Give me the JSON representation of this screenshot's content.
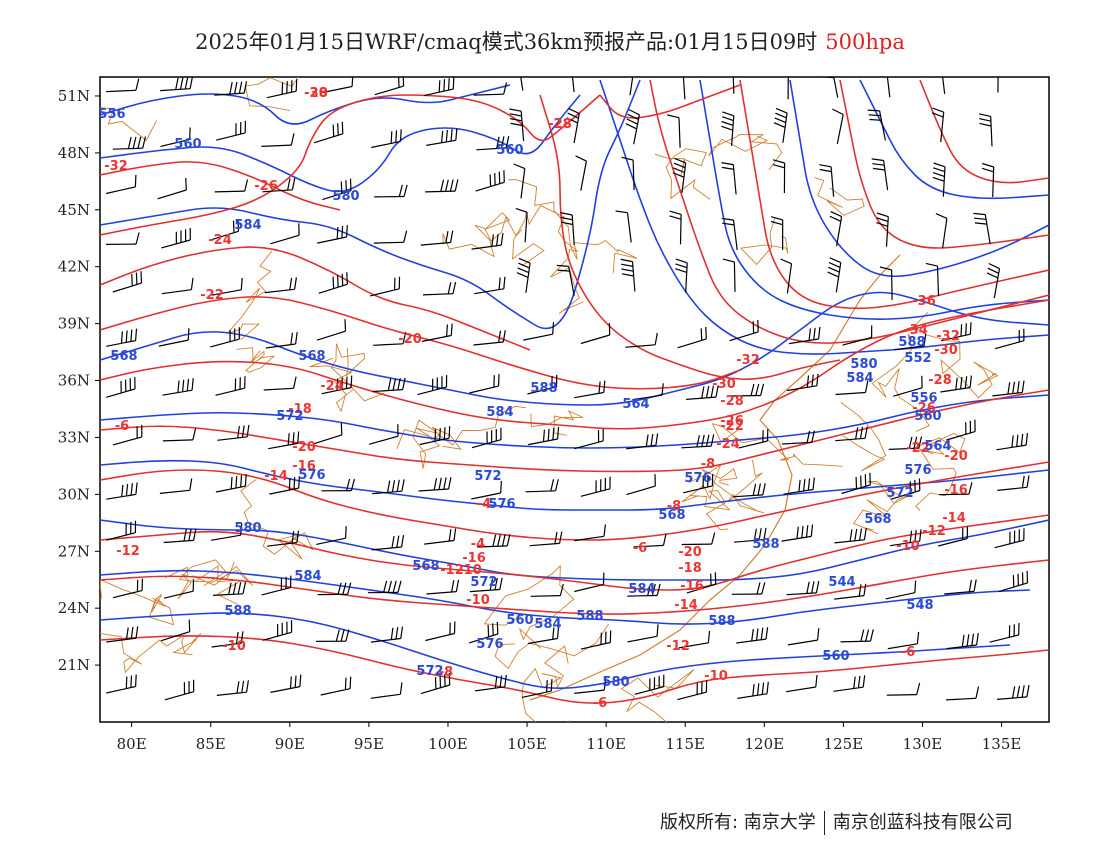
{
  "title": {
    "main": "2025年01月15日WRF/cmaq模式36km预报产品:01月15日09时",
    "level": "500hpa",
    "level_color": "#e02020"
  },
  "map": {
    "region": "East Asia",
    "lon_range": [
      78,
      138
    ],
    "lat_range": [
      18,
      52
    ],
    "lat_ticks": [
      "51N",
      "48N",
      "45N",
      "42N",
      "39N",
      "36N",
      "33N",
      "30N",
      "27N",
      "24N",
      "21N"
    ],
    "lon_ticks": [
      "80E",
      "85E",
      "90E",
      "95E",
      "100E",
      "105E",
      "110E",
      "115E",
      "120E",
      "125E",
      "130E",
      "135E"
    ],
    "temperature_contour_color": "#e03030",
    "height_contour_color": "#2040e0",
    "boundary_color": "#d08030",
    "wind_barb_color": "#000000",
    "temperature_labels": [
      "-28",
      "-28",
      "-26",
      "-24",
      "-22",
      "-20",
      "-24",
      "-18",
      "-20",
      "-16",
      "-14",
      "-12",
      "-10",
      "-10",
      "-8",
      "-6",
      "-6",
      "-4",
      "-4",
      "-16",
      "-12",
      "-10",
      "-8",
      "-6",
      "-20",
      "-18",
      "-16",
      "-14",
      "-12",
      "-10",
      "-8",
      "-24",
      "-22",
      "-30",
      "-32",
      "-28",
      "-26",
      "-34",
      "-36",
      "-32",
      "-30",
      "-28",
      "-26",
      "-22",
      "-20",
      "-16",
      "-14",
      "-12",
      "-10",
      "-6",
      "-32",
      "-30",
      "-28"
    ],
    "height_labels": [
      "556",
      "560",
      "560",
      "580",
      "584",
      "568",
      "568",
      "572",
      "576",
      "580",
      "584",
      "588",
      "572",
      "576",
      "584",
      "588",
      "564",
      "568",
      "560",
      "576",
      "572",
      "580",
      "584",
      "588",
      "560",
      "544",
      "548",
      "568",
      "572",
      "576",
      "580",
      "584",
      "588",
      "552",
      "556",
      "560",
      "564",
      "568",
      "572",
      "576",
      "584",
      "588",
      "588"
    ]
  },
  "footer": {
    "copyright": "版权所有: 南京大学",
    "company": "南京创蓝科技有限公司"
  }
}
